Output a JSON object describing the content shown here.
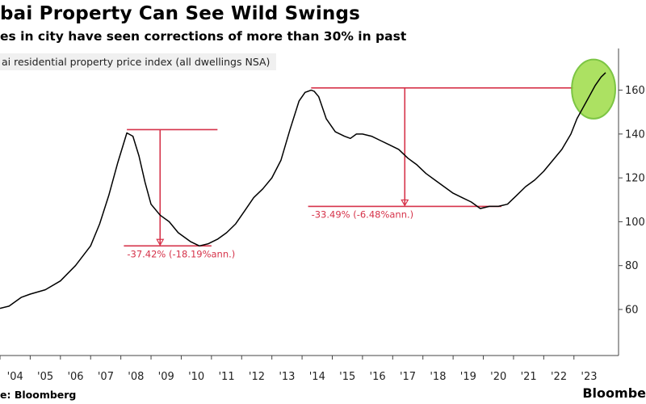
{
  "chart_data": {
    "type": "line",
    "title": "bai Property Can See Wild Swings",
    "subtitle": "es in city have seen corrections of more than 30% in past",
    "legend_label": "ai residential property price index (all dwellings NSA)",
    "source": "e: Bloomberg",
    "brand": "Bloombe",
    "x_ticks": [
      "'04",
      "'05",
      "'06",
      "'07",
      "'08",
      "'09",
      "'10",
      "'11",
      "'12",
      "'13",
      "'14",
      "'15",
      "'16",
      "'17",
      "'18",
      "'19",
      "'20",
      "'21",
      "'22",
      "'23"
    ],
    "y_ticks": [
      "60",
      "80",
      "100",
      "120",
      "140",
      "160"
    ],
    "y_tick_values": [
      60,
      80,
      100,
      120,
      140,
      160
    ],
    "ylim": [
      39,
      179
    ],
    "xlim": [
      2004.0,
      2024.45
    ],
    "series": [
      {
        "line_color": "#000000",
        "x": [
          2004.0,
          2004.3,
          2004.5,
          2004.7,
          2005.0,
          2005.5,
          2006.0,
          2006.5,
          2007.0,
          2007.3,
          2007.6,
          2007.9,
          2008.2,
          2008.4,
          2008.6,
          2008.8,
          2009.0,
          2009.3,
          2009.6,
          2009.9,
          2010.3,
          2010.6,
          2010.9,
          2011.2,
          2011.5,
          2011.8,
          2012.1,
          2012.4,
          2012.7,
          2013.0,
          2013.3,
          2013.6,
          2013.9,
          2014.1,
          2014.3,
          2014.4,
          2014.55,
          2014.8,
          2015.1,
          2015.4,
          2015.6,
          2015.8,
          2016.0,
          2016.3,
          2016.6,
          2016.9,
          2017.2,
          2017.5,
          2017.8,
          2018.1,
          2018.4,
          2018.7,
          2019.0,
          2019.3,
          2019.6,
          2019.9,
          2020.2,
          2020.5,
          2020.8,
          2021.1,
          2021.4,
          2021.7,
          2022.0,
          2022.3,
          2022.6,
          2022.9,
          2023.1,
          2023.3,
          2023.5,
          2023.7,
          2023.9,
          2024.05
        ],
        "y": [
          60.5,
          61.5,
          63.5,
          65.5,
          67,
          69,
          73,
          80,
          89,
          99,
          112,
          127,
          140.5,
          139,
          130,
          118,
          108,
          103,
          100,
          95,
          91,
          89,
          90,
          92,
          95,
          99,
          105,
          111,
          115,
          120,
          128,
          142,
          155,
          159,
          160,
          159.5,
          157,
          147,
          141,
          139,
          138,
          140,
          140,
          139,
          137,
          135,
          133,
          129,
          126,
          122,
          119,
          116,
          113,
          111,
          109,
          106,
          107,
          107,
          108,
          112,
          116,
          119,
          123,
          128,
          133,
          140,
          147,
          152,
          157,
          162,
          166,
          168
        ]
      }
    ],
    "annotations": [
      {
        "label": "-37.42% (-18.19%ann.)",
        "peak_x": 2008.2,
        "peak_y": 142,
        "trough_x": 2010.9,
        "trough_y": 89,
        "line_x_start": 2008.2,
        "line_x_end": 2010.9,
        "arrow_x": 2009.3
      },
      {
        "label": "-33.49% (-6.48%ann.)",
        "peak_x": 2014.3,
        "peak_y": 161,
        "trough_x": 2020.5,
        "trough_y": 107,
        "line_x_start": 2014.3,
        "line_x_end": 2020.5,
        "arrow_x": 2017.4
      }
    ],
    "highlight": {
      "center_x": 2023.65,
      "center_y": 160.5,
      "rx_years": 0.72,
      "ry_units": 13.5,
      "fill": "#a8e05a",
      "stroke": "#76c23a"
    },
    "annotation_color": "#d6334a",
    "grid": false
  }
}
